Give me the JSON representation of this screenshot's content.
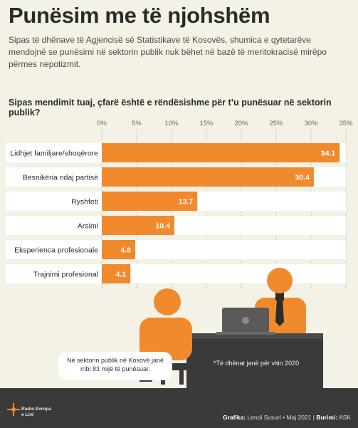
{
  "header": {
    "title": "Punësim me të njohshëm",
    "subtitle": "Sipas të dhënave të Agjencisë së Statistikave të Kosovës, shumica e qytetarëve mendojnë se punësimi në sektorin publik nuk bëhet në bazë të meritokracisë mirëpo përmes nepotizmit."
  },
  "chart_data": {
    "type": "bar",
    "orientation": "horizontal",
    "title": "Sipas mendimit tuaj, çfarë është e rëndësishme për t’u punësuar në sektorin publik?",
    "categories": [
      "Lidhjet familjare/shoqërore",
      "Besnikëria ndaj partisë",
      "Ryshfeti",
      "Arsimi",
      "Eksperienca profesionale",
      "Trajnimi profesional"
    ],
    "values": [
      34.1,
      30.4,
      13.7,
      10.4,
      4.8,
      4.1
    ],
    "value_labels": [
      "34.1",
      "30.4",
      "13.7",
      "10.4",
      "4.8",
      "4.1"
    ],
    "xlim": [
      0,
      35
    ],
    "ticks": [
      "0%",
      "5%",
      "10%",
      "15%",
      "20%",
      "25%",
      "30%",
      "35%"
    ],
    "tick_values": [
      0,
      5,
      10,
      15,
      20,
      25,
      30,
      35
    ],
    "grid": true,
    "bar_color": "#f08a2c"
  },
  "scene": {
    "speech_text": "Në sektorin publik në Kosovë janë mbi 83 mijë të punësuar.",
    "note": "*Të dhënat janë për vitin 2020"
  },
  "footer": {
    "logo_line1": "Radio Evropa",
    "logo_line2": "e Lirë",
    "credit_label1": "Grafika:",
    "credit_value1": "Lendi Susuri • Maj 2021 |",
    "credit_label2": "Burimi:",
    "credit_value2": "ASK"
  },
  "colors": {
    "accent": "#f08a2c",
    "background": "#f4f1e6",
    "dark": "#3a3a3a"
  }
}
